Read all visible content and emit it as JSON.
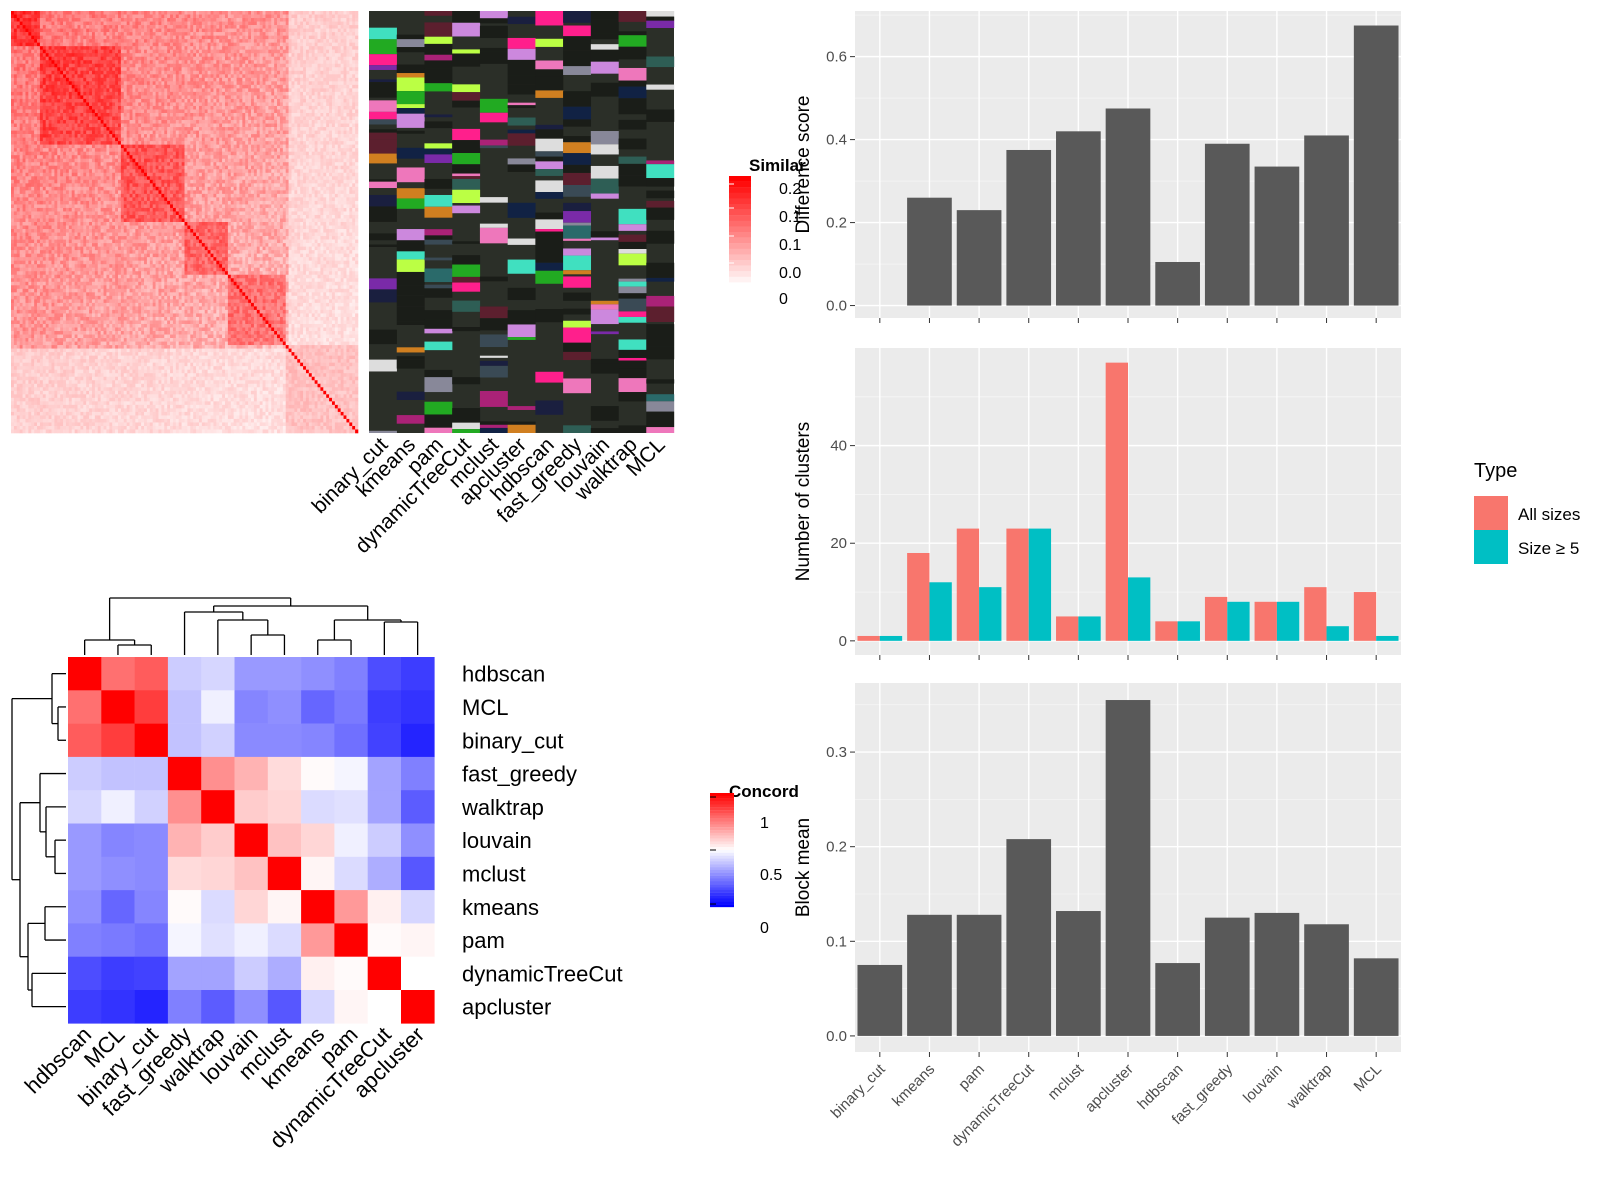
{
  "colors": {
    "panel_bg": "#ebebeb",
    "grid_major": "#ffffff",
    "bar_dark": "#595959",
    "all_sizes": "#f8766d",
    "size_ge5": "#00bfc4",
    "heat_red": "#ff0000",
    "heat_blue": "#0000ff",
    "cluster_bg": "#2b2f28"
  },
  "chart_data": [
    {
      "type": "heatmap",
      "name": "similarity",
      "legend_title": "Similar",
      "legend_labels": [
        "0.2",
        "0.1",
        "0.1",
        "0.0",
        "0"
      ]
    },
    {
      "type": "heatmap",
      "name": "cluster-assignments",
      "columns": [
        "binary_cut",
        "kmeans",
        "pam",
        "dynamicTreeCut",
        "mclust",
        "apcluster",
        "hdbscan",
        "fast_greedy",
        "louvain",
        "walktrap",
        "MCL"
      ]
    },
    {
      "type": "heatmap",
      "name": "concordance",
      "legend_title": "Concord",
      "legend_labels": [
        "1",
        "0.5",
        "0"
      ],
      "rows": [
        "hdbscan",
        "MCL",
        "binary_cut",
        "fast_greedy",
        "walktrap",
        "louvain",
        "mclust",
        "kmeans",
        "pam",
        "dynamicTreeCut",
        "apcluster"
      ],
      "columns": [
        "hdbscan",
        "MCL",
        "binary_cut",
        "fast_greedy",
        "walktrap",
        "louvain",
        "mclust",
        "kmeans",
        "pam",
        "dynamicTreeCut",
        "apcluster"
      ],
      "values": [
        [
          1.0,
          0.78,
          0.82,
          0.4,
          0.42,
          0.3,
          0.3,
          0.28,
          0.25,
          0.15,
          0.12
        ],
        [
          0.78,
          1.0,
          0.88,
          0.38,
          0.47,
          0.26,
          0.28,
          0.2,
          0.24,
          0.12,
          0.1
        ],
        [
          0.82,
          0.88,
          1.0,
          0.38,
          0.41,
          0.27,
          0.27,
          0.26,
          0.22,
          0.13,
          0.07
        ],
        [
          0.4,
          0.38,
          0.38,
          1.0,
          0.72,
          0.65,
          0.57,
          0.51,
          0.48,
          0.32,
          0.25
        ],
        [
          0.42,
          0.47,
          0.41,
          0.72,
          1.0,
          0.6,
          0.58,
          0.43,
          0.44,
          0.32,
          0.18
        ],
        [
          0.3,
          0.26,
          0.27,
          0.65,
          0.6,
          1.0,
          0.62,
          0.58,
          0.47,
          0.4,
          0.28
        ],
        [
          0.3,
          0.28,
          0.27,
          0.57,
          0.58,
          0.62,
          1.0,
          0.52,
          0.43,
          0.34,
          0.17
        ],
        [
          0.28,
          0.2,
          0.26,
          0.51,
          0.43,
          0.58,
          0.52,
          1.0,
          0.7,
          0.53,
          0.42
        ],
        [
          0.25,
          0.24,
          0.22,
          0.48,
          0.44,
          0.47,
          0.43,
          0.7,
          1.0,
          0.51,
          0.52
        ],
        [
          0.15,
          0.12,
          0.13,
          0.32,
          0.32,
          0.4,
          0.34,
          0.53,
          0.51,
          1.0,
          0.5
        ],
        [
          0.12,
          0.1,
          0.07,
          0.25,
          0.18,
          0.28,
          0.17,
          0.42,
          0.52,
          0.5,
          1.0
        ]
      ]
    },
    {
      "type": "bar",
      "name": "difference-score",
      "categories": [
        "binary_cut",
        "kmeans",
        "pam",
        "dynamicTreeCut",
        "mclust",
        "apcluster",
        "hdbscan",
        "fast_greedy",
        "louvain",
        "walktrap",
        "MCL"
      ],
      "values": [
        0.0,
        0.26,
        0.23,
        0.375,
        0.42,
        0.475,
        0.105,
        0.39,
        0.335,
        0.41,
        0.675
      ],
      "ylabel": "Difference score",
      "ylim": [
        -0.03,
        0.71
      ],
      "yticks": [
        0.0,
        0.2,
        0.4,
        0.6
      ],
      "ytick_labels": [
        "0.0",
        "0.2",
        "0.4",
        "0.6"
      ]
    },
    {
      "type": "bar",
      "name": "number-of-clusters",
      "categories": [
        "binary_cut",
        "kmeans",
        "pam",
        "dynamicTreeCut",
        "mclust",
        "apcluster",
        "hdbscan",
        "fast_greedy",
        "louvain",
        "walktrap",
        "MCL"
      ],
      "series": [
        {
          "name": "All sizes",
          "values": [
            1,
            18,
            23,
            23,
            5,
            57,
            4,
            9,
            8,
            11,
            10
          ]
        },
        {
          "name": "Size ≥ 5",
          "values": [
            1,
            12,
            11,
            23,
            5,
            13,
            4,
            8,
            8,
            3,
            1
          ]
        }
      ],
      "ylabel": "Number of clusters",
      "ylim": [
        -2.9,
        60
      ],
      "yticks": [
        0,
        20,
        40
      ],
      "ytick_labels": [
        "0",
        "20",
        "40"
      ],
      "legend_title": "Type",
      "legend_position": "right"
    },
    {
      "type": "bar",
      "name": "block-mean",
      "categories": [
        "binary_cut",
        "kmeans",
        "pam",
        "dynamicTreeCut",
        "mclust",
        "apcluster",
        "hdbscan",
        "fast_greedy",
        "louvain",
        "walktrap",
        "MCL"
      ],
      "values": [
        0.075,
        0.128,
        0.128,
        0.208,
        0.132,
        0.355,
        0.077,
        0.125,
        0.13,
        0.118,
        0.082
      ],
      "ylabel": "Block mean",
      "ylim": [
        -0.017,
        0.373
      ],
      "yticks": [
        0.0,
        0.1,
        0.2,
        0.3
      ],
      "ytick_labels": [
        "0.0",
        "0.1",
        "0.2",
        "0.3"
      ]
    }
  ]
}
